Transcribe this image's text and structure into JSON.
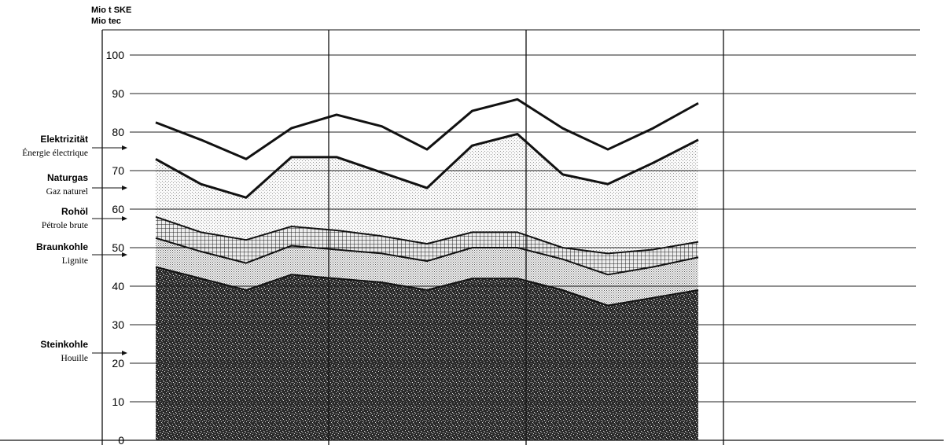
{
  "chart_data": {
    "type": "area",
    "stacked": true,
    "title": "",
    "xlabel": "",
    "ylabel": [
      "Mio t SKE",
      "Mio tec"
    ],
    "ylim": [
      0,
      100
    ],
    "yticks": [
      0,
      10,
      20,
      30,
      40,
      50,
      60,
      70,
      80,
      90,
      100
    ],
    "grid": true,
    "x": [
      0,
      1,
      2,
      3,
      4,
      5,
      6,
      7,
      8,
      9,
      10,
      11,
      12
    ],
    "series": [
      {
        "name": "Steinkohle",
        "name_fr": "Houille",
        "pattern": "dense-speckle",
        "cumulative": [
          45,
          42,
          39,
          43,
          42,
          41,
          39,
          42,
          42,
          39,
          35,
          37,
          39
        ]
      },
      {
        "name": "Braunkohle",
        "name_fr": "Lignite",
        "pattern": "dots",
        "cumulative": [
          52.5,
          49,
          46,
          50.5,
          49.5,
          48.5,
          46.5,
          50,
          50,
          47,
          43,
          45,
          47.5
        ]
      },
      {
        "name": "Rohöl",
        "name_fr": "Pétrole brute",
        "pattern": "grid",
        "cumulative": [
          58,
          54,
          52,
          55.5,
          54.5,
          53,
          51,
          54,
          54,
          50,
          48.5,
          49.5,
          51.5
        ]
      },
      {
        "name": "Naturgas",
        "name_fr": "Gaz naturel",
        "pattern": "light-dots",
        "cumulative": [
          73,
          66.5,
          63,
          73.5,
          73.5,
          69.5,
          65.5,
          76.5,
          79.5,
          69,
          66.5,
          72,
          78
        ]
      },
      {
        "name": "Elektrizität",
        "name_fr": "Énergie électrique",
        "pattern": "none",
        "cumulative": [
          82.5,
          78,
          73,
          81,
          84.5,
          81.5,
          75.5,
          85.5,
          88.5,
          81,
          75.5,
          81,
          87.5
        ]
      }
    ],
    "legend": [
      {
        "de": "Elektrizität",
        "fr": "Énergie électrique"
      },
      {
        "de": "Naturgas",
        "fr": "Gaz naturel"
      },
      {
        "de": "Rohöl",
        "fr": "Pétrole brute"
      },
      {
        "de": "Braunkohle",
        "fr": "Lignite"
      },
      {
        "de": "Steinkohle",
        "fr": "Houille"
      }
    ],
    "legend_placement": "left"
  }
}
